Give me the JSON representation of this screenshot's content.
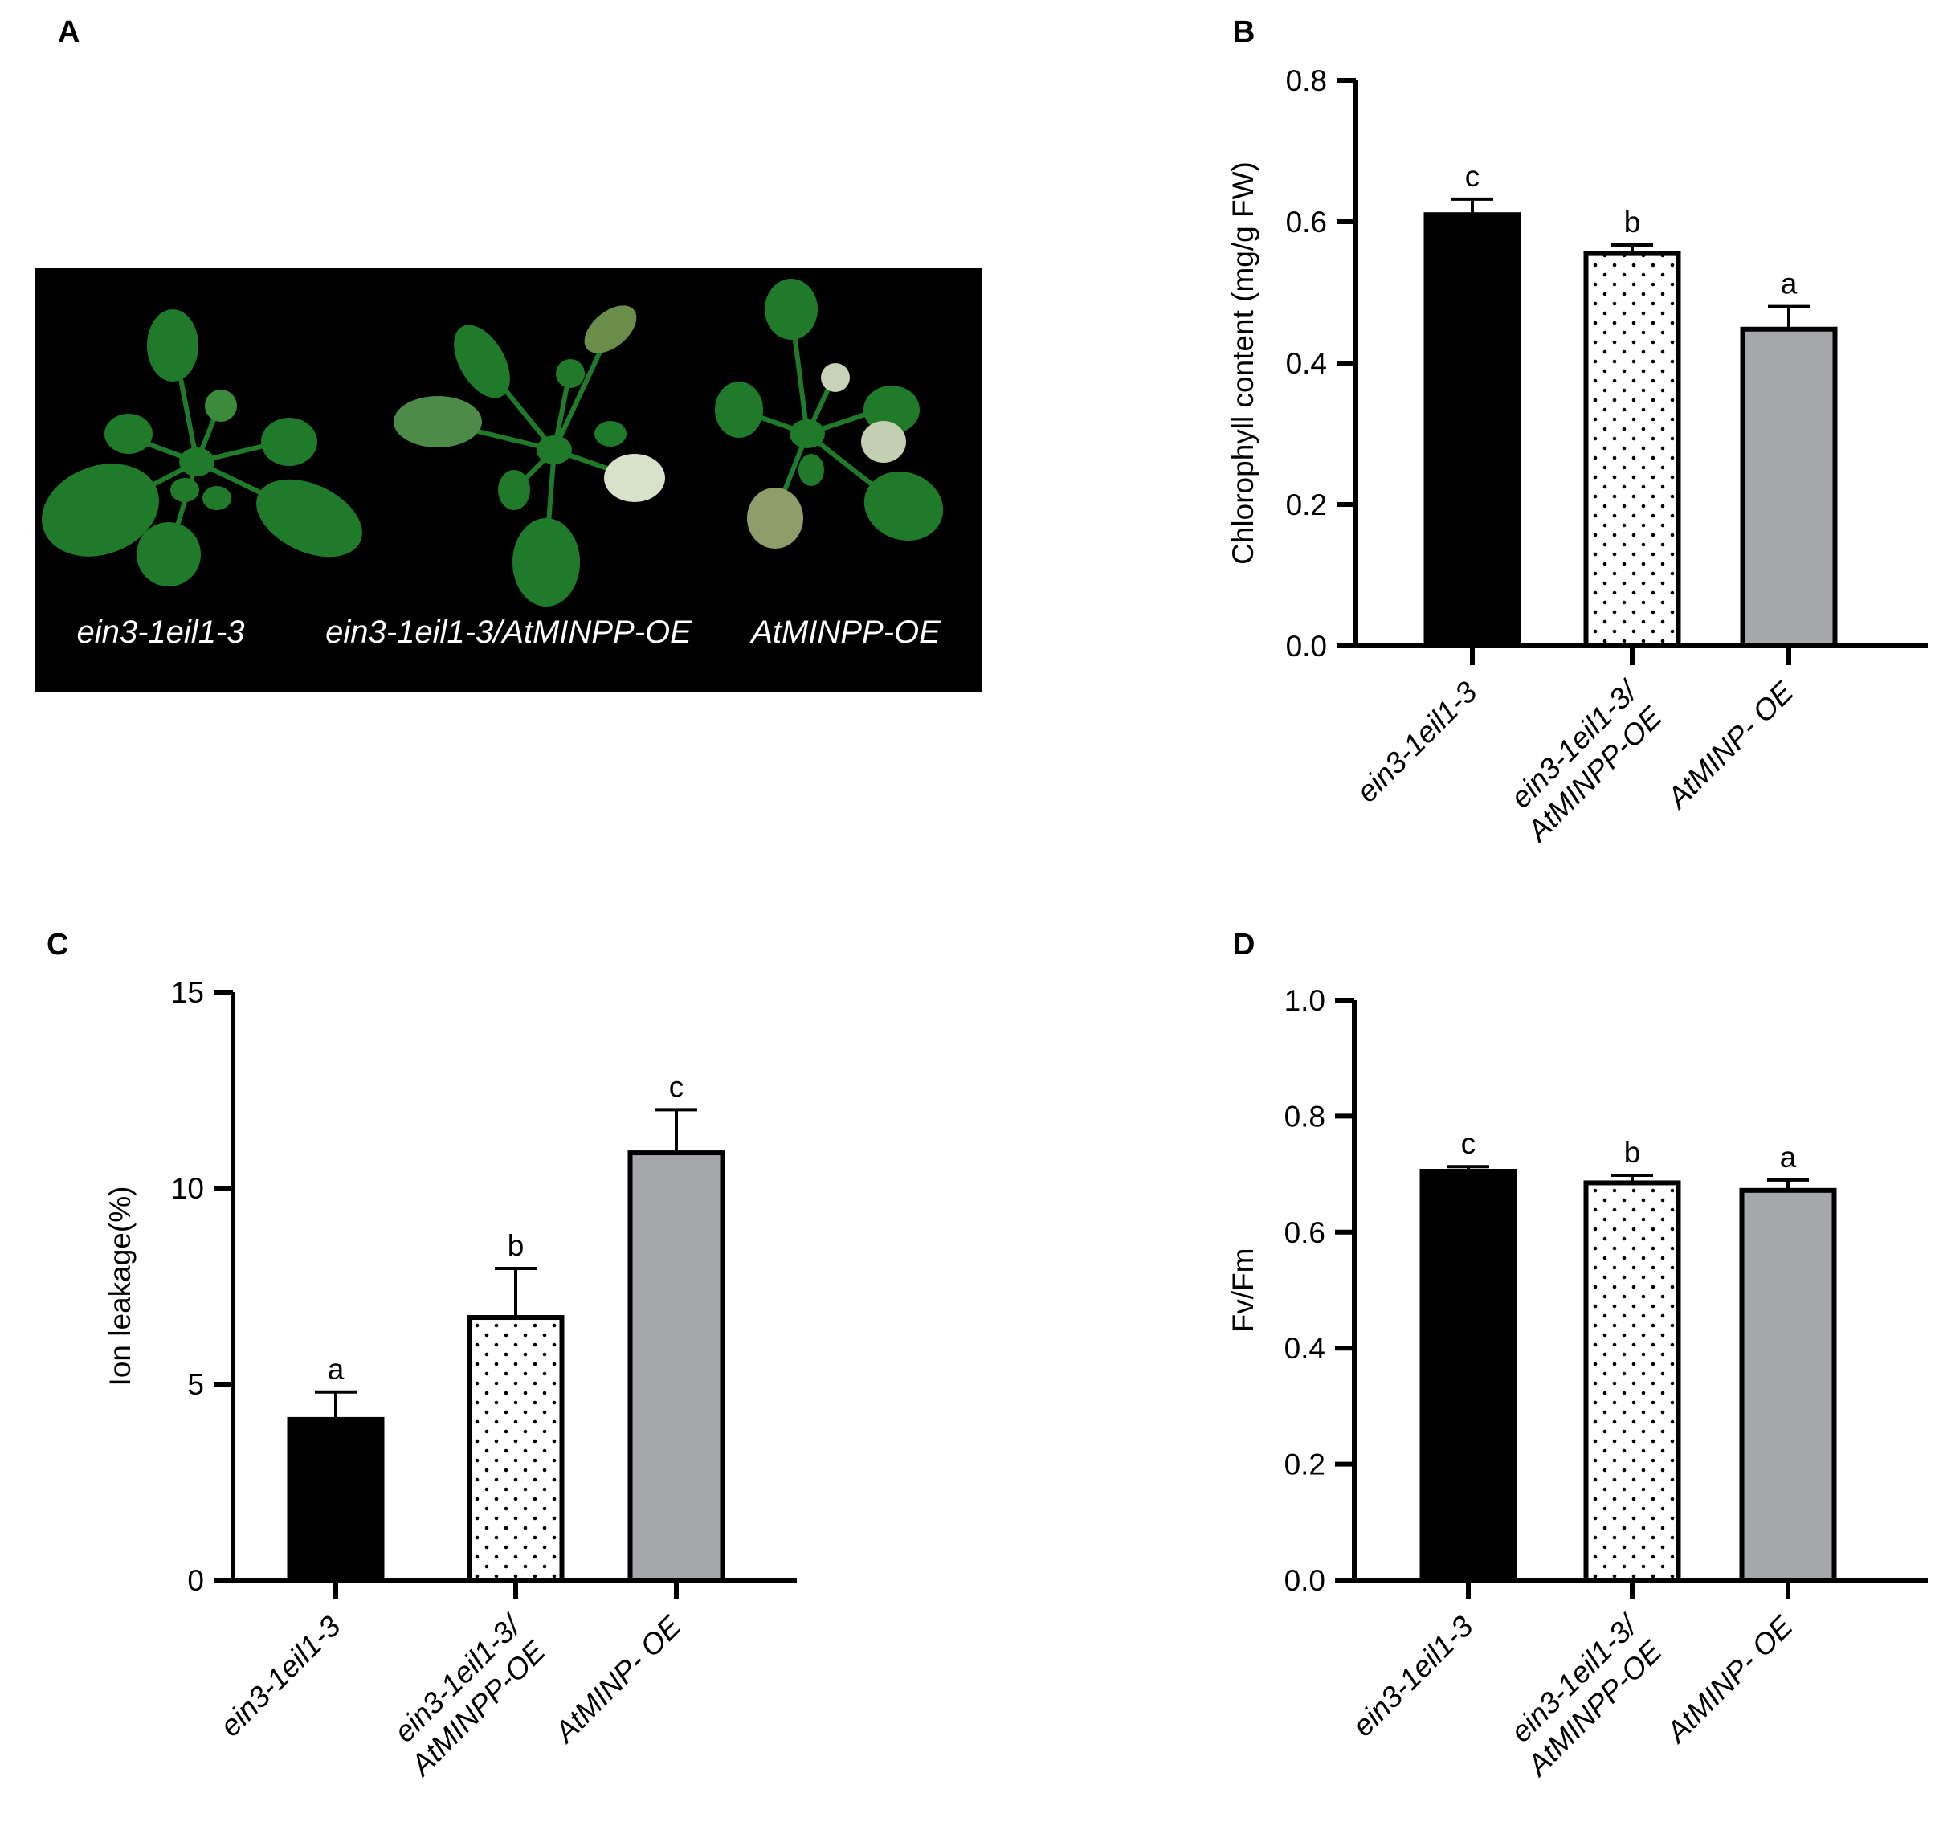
{
  "panel_letters": [
    "A",
    "B",
    "C",
    "D"
  ],
  "photo": {
    "labels": [
      "ein3-1eil1-3",
      "ein3-1eil1-3/AtMINPP-OE",
      "AtMINPP-OE"
    ]
  },
  "colors": {
    "bar_black": "#000000",
    "bar_dotted": "#ffffff",
    "bar_gray": "#a6a7ab",
    "photo_bg": "#000000",
    "leaf": "#1f7a2a"
  },
  "chart_data": [
    {
      "id": "B",
      "type": "bar",
      "ylabel": "Chlorophyll content (mg/g FW)",
      "ylim": [
        0,
        0.8
      ],
      "yticks": [
        "0.0",
        "0.2",
        "0.4",
        "0.6",
        "0.8"
      ],
      "categories": [
        [
          "ein3-1eil1-3"
        ],
        [
          "ein3-1eil1-3/",
          "AtMINPP-OE"
        ],
        [
          "AtMINP- OE"
        ]
      ],
      "values": [
        0.61,
        0.555,
        0.448
      ],
      "errors": [
        0.022,
        0.012,
        0.032
      ],
      "significance": [
        "c",
        "b",
        "a"
      ],
      "fills": [
        "solid-black",
        "dotted",
        "gray"
      ]
    },
    {
      "id": "C",
      "type": "bar",
      "ylabel": "Ion leakage(%)",
      "ylim": [
        0,
        15
      ],
      "yticks": [
        "0",
        "5",
        "10",
        "15"
      ],
      "categories": [
        [
          "ein3-1eil1-3"
        ],
        [
          "ein3-1eil1-3/",
          "AtMINPP-OE"
        ],
        [
          "AtMINP- OE"
        ]
      ],
      "values": [
        4.1,
        6.7,
        10.9
      ],
      "errors": [
        0.7,
        1.25,
        1.1
      ],
      "significance": [
        "a",
        "b",
        "c"
      ],
      "fills": [
        "solid-black",
        "dotted",
        "gray"
      ]
    },
    {
      "id": "D",
      "type": "bar",
      "ylabel": "Fv/Fm",
      "ylim": [
        0,
        1.0
      ],
      "yticks": [
        "0.0",
        "0.2",
        "0.4",
        "0.6",
        "0.8",
        "1.0"
      ],
      "categories": [
        [
          "ein3-1eil1-3"
        ],
        [
          "ein3-1eil1-3/",
          "AtMINPP-OE"
        ],
        [
          "AtMINP- OE"
        ]
      ],
      "values": [
        0.705,
        0.685,
        0.672
      ],
      "errors": [
        0.008,
        0.013,
        0.018
      ],
      "significance": [
        "c",
        "b",
        "a"
      ],
      "fills": [
        "solid-black",
        "dotted",
        "gray"
      ]
    }
  ]
}
